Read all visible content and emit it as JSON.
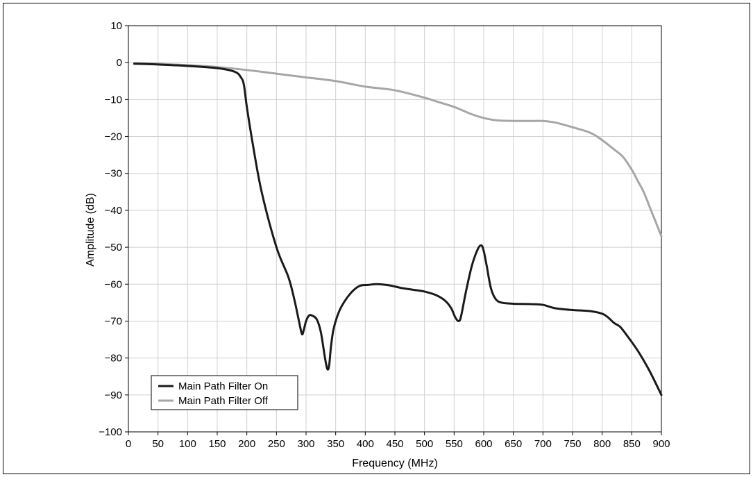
{
  "chart_data": {
    "type": "line",
    "title": "",
    "xlabel": "Frequency (MHz)",
    "ylabel": "Amplitude (dB)",
    "xlim": [
      0,
      900
    ],
    "ylim": [
      -100,
      10
    ],
    "x_ticks": [
      0,
      50,
      100,
      150,
      200,
      250,
      300,
      350,
      400,
      450,
      500,
      550,
      600,
      650,
      700,
      750,
      800,
      850,
      900
    ],
    "y_ticks": [
      10,
      0,
      -10,
      -20,
      -30,
      -40,
      -50,
      -60,
      -70,
      -80,
      -90,
      -100
    ],
    "y_tick_labels": [
      "10",
      "0",
      "−10",
      "−20",
      "−30",
      "−40",
      "−50",
      "−60",
      "−70",
      "−80",
      "−90",
      "−100"
    ],
    "grid": true,
    "legend_position": "bottom-left",
    "series": [
      {
        "name": "Main Path Filter On",
        "color": "#1a1a1a",
        "x": [
          10,
          50,
          100,
          150,
          180,
          190,
          195,
          200,
          210,
          225,
          250,
          270,
          280,
          288,
          293,
          296,
          300,
          305,
          310,
          318,
          325,
          332,
          336,
          339,
          342,
          346,
          352,
          360,
          375,
          390,
          405,
          420,
          440,
          460,
          480,
          500,
          520,
          535,
          545,
          552,
          558,
          562,
          570,
          580,
          590,
          596,
          600,
          605,
          612,
          620,
          630,
          650,
          680,
          700,
          720,
          750,
          780,
          800,
          810,
          820,
          830,
          840,
          860,
          880,
          900
        ],
        "values": [
          -0.3,
          -0.5,
          -0.9,
          -1.5,
          -2.5,
          -4,
          -6,
          -12,
          -22,
          -35,
          -50,
          -58,
          -64,
          -70,
          -73.5,
          -72.5,
          -70,
          -68.5,
          -68.5,
          -69.5,
          -73,
          -80,
          -83,
          -82,
          -77,
          -72.5,
          -69,
          -66,
          -62.5,
          -60.5,
          -60.2,
          -60,
          -60.3,
          -61,
          -61.5,
          -62,
          -63,
          -64.5,
          -66.5,
          -69,
          -70,
          -68.5,
          -62,
          -55,
          -50.5,
          -49.5,
          -51,
          -55,
          -61,
          -64,
          -65,
          -65.3,
          -65.4,
          -65.6,
          -66.5,
          -67,
          -67.3,
          -68,
          -69,
          -70.5,
          -71.5,
          -73.5,
          -78,
          -83.5,
          -90
        ]
      },
      {
        "name": "Main Path Filter Off",
        "color": "#a6a6a6",
        "x": [
          10,
          50,
          100,
          150,
          200,
          250,
          300,
          350,
          400,
          450,
          500,
          520,
          550,
          580,
          600,
          620,
          650,
          680,
          700,
          720,
          750,
          780,
          800,
          820,
          835,
          850,
          860,
          870,
          880,
          890,
          900
        ],
        "values": [
          -0.1,
          -0.3,
          -0.7,
          -1.2,
          -2,
          -3,
          -4,
          -5,
          -6.5,
          -7.5,
          -9.5,
          -10.5,
          -12,
          -14,
          -15,
          -15.6,
          -15.8,
          -15.8,
          -15.8,
          -16.2,
          -17.5,
          -19,
          -21,
          -23.5,
          -25.5,
          -29,
          -32,
          -35,
          -39,
          -43,
          -47
        ]
      }
    ]
  }
}
